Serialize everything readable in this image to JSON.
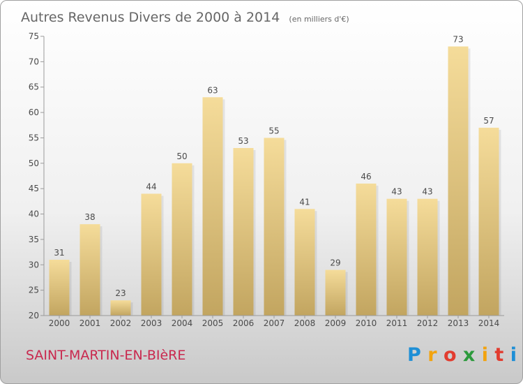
{
  "chart_data": {
    "type": "bar",
    "title": "Autres Revenus Divers de 2000 à 2014",
    "subtitle": "(en milliers d'€)",
    "categories": [
      "2000",
      "2001",
      "2002",
      "2003",
      "2004",
      "2005",
      "2006",
      "2007",
      "2008",
      "2009",
      "2010",
      "2011",
      "2012",
      "2013",
      "2014"
    ],
    "values": [
      31,
      38,
      23,
      44,
      50,
      63,
      53,
      55,
      41,
      29,
      46,
      43,
      43,
      73,
      57
    ],
    "data_labels": [
      "31",
      "38",
      "23",
      "44",
      "50",
      "63",
      "53",
      "55",
      "41",
      "29",
      "46",
      "43",
      "43",
      "73",
      "57"
    ],
    "ylim": [
      20,
      75
    ],
    "yticks": [
      20,
      25,
      30,
      35,
      40,
      45,
      50,
      55,
      60,
      65,
      70,
      75
    ],
    "xlabel": "",
    "ylabel": "",
    "grid": false,
    "bar_color_light": "#f5dc9a",
    "bar_color_dark": "#c2a560"
  },
  "footer": {
    "commune": "SAINT-MARTIN-EN-BIèRE",
    "logo_letters": [
      "P",
      "r",
      "o",
      "x",
      "i",
      "t",
      "i"
    ],
    "logo_colors": [
      "#1e8fd6",
      "#f2a30f",
      "#e23c2f",
      "#2c9a3c",
      "#f2a30f",
      "#e23c2f",
      "#1e8fd6"
    ]
  }
}
